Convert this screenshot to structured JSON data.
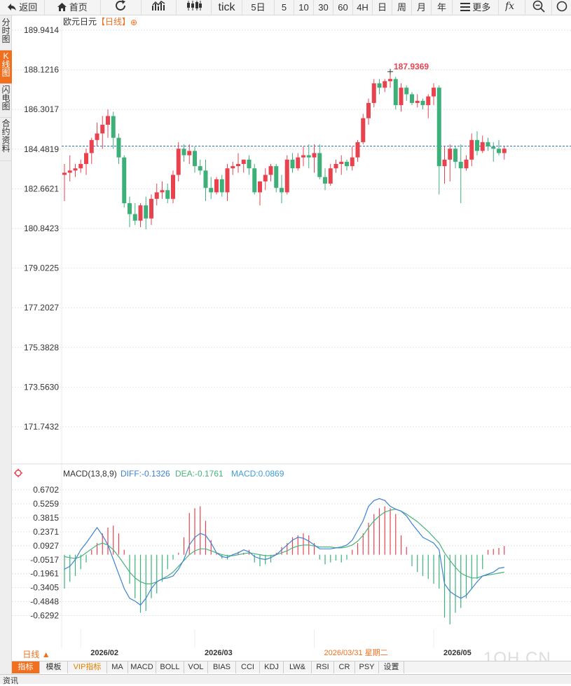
{
  "toolbar": {
    "back_label": "返回",
    "home_label": "首页",
    "tick_label": "tick",
    "periods": [
      "5日",
      "5",
      "10",
      "30",
      "60",
      "4H",
      "日",
      "周",
      "月",
      "年"
    ],
    "more_label": "更多"
  },
  "sidetabs": [
    "分时图",
    "K线图",
    "闪电图",
    "合约资料"
  ],
  "header": {
    "symbol": "欧元日元",
    "period_tag": "【日线】",
    "add_icon": "⊕"
  },
  "macd_header": {
    "title": "MACD(13,8,9)",
    "diff": "DIFF:-0.1326",
    "dea": "DEA:-0.1761",
    "macd": "MACD:0.0869"
  },
  "colors": {
    "up": "#e8424f",
    "down": "#3db07a",
    "diff": "#3e82d0",
    "dea": "#48b47a",
    "grid": "#e6e6e6",
    "ref": "#2a74c8",
    "accent": "#f07020"
  },
  "chart_data": [
    {
      "type": "candlestick",
      "title": "欧元日元",
      "y_ticks": [
        "189.9414",
        "188.1216",
        "186.3017",
        "184.4819",
        "182.6621",
        "180.8423",
        "179.0225",
        "177.2027",
        "175.3828",
        "173.5630",
        "171.7432"
      ],
      "ylim": [
        171.7432,
        189.9414
      ],
      "max_label": "187.9369",
      "reference_price": 184.62,
      "ohlc": [
        [
          183.3,
          183.8,
          182.1,
          183.4
        ],
        [
          183.4,
          184.2,
          183.0,
          183.5
        ],
        [
          183.5,
          183.8,
          183.2,
          183.6
        ],
        [
          183.6,
          184.0,
          183.4,
          183.8
        ],
        [
          183.8,
          184.5,
          183.3,
          184.3
        ],
        [
          184.3,
          185.0,
          183.8,
          184.9
        ],
        [
          184.9,
          185.7,
          184.6,
          185.2
        ],
        [
          185.2,
          186.0,
          184.5,
          185.6
        ],
        [
          185.6,
          186.3,
          185.0,
          186.0
        ],
        [
          186.0,
          186.2,
          184.5,
          185.0
        ],
        [
          185.0,
          185.2,
          183.8,
          184.1
        ],
        [
          184.1,
          184.2,
          181.8,
          182.0
        ],
        [
          182.0,
          182.3,
          180.9,
          181.5
        ],
        [
          181.5,
          182.0,
          181.0,
          181.2
        ],
        [
          181.2,
          182.0,
          180.9,
          181.9
        ],
        [
          181.9,
          182.3,
          180.8,
          181.3
        ],
        [
          181.3,
          182.4,
          181.0,
          182.2
        ],
        [
          182.2,
          182.9,
          181.9,
          182.5
        ],
        [
          182.5,
          183.0,
          182.2,
          182.6
        ],
        [
          182.6,
          182.9,
          182.0,
          182.2
        ],
        [
          182.2,
          183.5,
          182.0,
          183.3
        ],
        [
          183.3,
          184.8,
          183.0,
          184.5
        ],
        [
          184.5,
          184.7,
          183.9,
          184.2
        ],
        [
          184.2,
          184.7,
          183.8,
          184.4
        ],
        [
          184.4,
          184.6,
          183.4,
          183.7
        ],
        [
          183.7,
          184.0,
          183.3,
          183.5
        ],
        [
          183.5,
          184.0,
          182.1,
          182.7
        ],
        [
          182.7,
          183.2,
          182.2,
          182.5
        ],
        [
          182.5,
          183.2,
          182.4,
          183.1
        ],
        [
          183.1,
          183.3,
          182.3,
          182.5
        ],
        [
          182.5,
          183.8,
          182.1,
          183.6
        ],
        [
          183.6,
          183.9,
          183.3,
          183.7
        ],
        [
          183.7,
          184.3,
          183.4,
          183.8
        ],
        [
          183.8,
          184.0,
          183.4,
          184.0
        ],
        [
          184.0,
          184.2,
          183.3,
          183.6
        ],
        [
          183.6,
          183.8,
          182.4,
          182.5
        ],
        [
          182.5,
          183.0,
          181.9,
          183.0
        ],
        [
          183.0,
          183.6,
          182.6,
          183.3
        ],
        [
          183.3,
          183.8,
          183.0,
          183.7
        ],
        [
          183.7,
          183.8,
          182.5,
          182.7
        ],
        [
          182.7,
          183.3,
          182.0,
          182.5
        ],
        [
          182.5,
          184.2,
          182.4,
          184.0
        ],
        [
          184.0,
          184.3,
          183.4,
          183.6
        ],
        [
          183.6,
          184.3,
          183.5,
          184.1
        ],
        [
          184.1,
          184.6,
          183.7,
          184.2
        ],
        [
          184.2,
          184.7,
          183.6,
          184.1
        ],
        [
          184.1,
          184.7,
          183.4,
          184.3
        ],
        [
          184.3,
          184.7,
          183.1,
          183.2
        ],
        [
          183.2,
          183.6,
          182.6,
          182.9
        ],
        [
          182.9,
          183.8,
          182.8,
          183.6
        ],
        [
          183.6,
          184.0,
          183.4,
          183.8
        ],
        [
          183.8,
          184.2,
          183.3,
          183.9
        ],
        [
          183.9,
          184.0,
          183.5,
          183.7
        ],
        [
          183.7,
          184.6,
          183.5,
          184.1
        ],
        [
          184.1,
          184.9,
          183.9,
          184.8
        ],
        [
          184.8,
          186.1,
          184.7,
          185.9
        ],
        [
          185.9,
          186.8,
          185.6,
          186.6
        ],
        [
          186.6,
          187.7,
          186.4,
          187.5
        ],
        [
          187.5,
          187.7,
          187.0,
          187.3
        ],
        [
          187.3,
          187.7,
          187.1,
          187.6
        ],
        [
          187.6,
          187.94,
          187.3,
          187.7
        ],
        [
          187.7,
          187.8,
          186.3,
          186.5
        ],
        [
          186.5,
          187.5,
          186.2,
          187.3
        ],
        [
          187.3,
          187.4,
          186.7,
          187.0
        ],
        [
          187.0,
          187.1,
          186.5,
          186.6
        ],
        [
          186.6,
          187.0,
          186.4,
          186.7
        ],
        [
          186.7,
          186.8,
          186.3,
          186.5
        ],
        [
          186.5,
          187.0,
          185.9,
          186.9
        ],
        [
          186.9,
          187.5,
          186.5,
          187.3
        ],
        [
          187.3,
          187.4,
          182.4,
          183.7
        ],
        [
          183.7,
          184.6,
          182.9,
          184.0
        ],
        [
          184.0,
          184.7,
          183.0,
          184.5
        ],
        [
          184.5,
          184.6,
          183.6,
          183.9
        ],
        [
          183.9,
          184.7,
          182.0,
          183.6
        ],
        [
          183.6,
          184.2,
          183.5,
          184.0
        ],
        [
          184.0,
          185.2,
          183.7,
          184.9
        ],
        [
          184.9,
          185.3,
          184.2,
          184.4
        ],
        [
          184.4,
          185.1,
          184.3,
          184.8
        ],
        [
          184.8,
          185.0,
          184.4,
          184.6
        ],
        [
          184.6,
          184.8,
          183.9,
          184.5
        ],
        [
          184.5,
          184.9,
          184.2,
          184.3
        ],
        [
          184.3,
          184.6,
          184.0,
          184.5
        ]
      ]
    },
    {
      "type": "macd",
      "title": "MACD(13,8,9)",
      "y_ticks": [
        "0.6702",
        "0.5259",
        "0.3815",
        "0.2371",
        "0.0927",
        "-0.0517",
        "-0.1961",
        "-0.3405",
        "-0.4848",
        "-0.6292"
      ],
      "ylim": [
        -0.77,
        0.75
      ],
      "x_labels": [
        "2026/02",
        "2026/03",
        "2026/03/31 星期二",
        "2026/05"
      ],
      "histogram": [
        -0.35,
        -0.28,
        -0.22,
        -0.15,
        -0.08,
        0.05,
        0.12,
        0.22,
        0.28,
        0.3,
        0.22,
        0.05,
        -0.3,
        -0.45,
        -0.6,
        -0.58,
        -0.45,
        -0.4,
        -0.28,
        -0.15,
        -0.05,
        0.02,
        0.18,
        0.43,
        0.48,
        0.5,
        0.35,
        0.15,
        0.02,
        -0.04,
        -0.05,
        0.0,
        0.03,
        0.02,
        0.05,
        -0.08,
        -0.12,
        -0.1,
        -0.08,
        0.02,
        0.08,
        0.12,
        0.18,
        0.2,
        0.22,
        0.2,
        0.12,
        -0.05,
        -0.1,
        -0.08,
        -0.06,
        -0.08,
        -0.05,
        0.05,
        0.12,
        0.22,
        0.33,
        0.42,
        0.48,
        0.5,
        0.48,
        0.42,
        0.2,
        0.08,
        -0.12,
        -0.18,
        -0.22,
        -0.25,
        -0.3,
        -0.35,
        -0.65,
        -0.72,
        -0.6,
        -0.55,
        -0.45,
        -0.35,
        -0.25,
        -0.15,
        0.05,
        0.06,
        0.07,
        0.09
      ],
      "diff": [
        -0.15,
        -0.12,
        -0.05,
        0.05,
        0.12,
        0.2,
        0.28,
        0.2,
        0.1,
        -0.05,
        -0.2,
        -0.35,
        -0.45,
        -0.48,
        -0.52,
        -0.45,
        -0.35,
        -0.28,
        -0.25,
        -0.24,
        -0.22,
        -0.15,
        -0.05,
        0.1,
        0.18,
        0.22,
        0.2,
        0.12,
        0.02,
        -0.02,
        -0.03,
        0.0,
        0.02,
        0.05,
        0.03,
        -0.02,
        -0.04,
        -0.05,
        -0.03,
        0.0,
        0.05,
        0.1,
        0.15,
        0.18,
        0.17,
        0.14,
        0.1,
        0.06,
        0.06,
        0.06,
        0.07,
        0.08,
        0.1,
        0.15,
        0.25,
        0.35,
        0.5,
        0.56,
        0.58,
        0.56,
        0.5,
        0.47,
        0.45,
        0.4,
        0.32,
        0.25,
        0.18,
        0.15,
        0.12,
        0.05,
        -0.3,
        -0.38,
        -0.42,
        -0.45,
        -0.42,
        -0.35,
        -0.28,
        -0.22,
        -0.2,
        -0.18,
        -0.14,
        -0.13
      ],
      "dea": [
        -0.02,
        -0.03,
        -0.04,
        -0.02,
        0.02,
        0.06,
        0.1,
        0.12,
        0.1,
        0.05,
        -0.02,
        -0.1,
        -0.18,
        -0.24,
        -0.28,
        -0.3,
        -0.3,
        -0.28,
        -0.25,
        -0.22,
        -0.18,
        -0.12,
        -0.06,
        0.0,
        0.04,
        0.06,
        0.06,
        0.04,
        0.02,
        0.0,
        -0.01,
        -0.01,
        0.0,
        0.01,
        0.02,
        0.01,
        0.0,
        -0.01,
        -0.01,
        0.0,
        0.02,
        0.04,
        0.07,
        0.09,
        0.1,
        0.1,
        0.09,
        0.08,
        0.08,
        0.08,
        0.07,
        0.07,
        0.08,
        0.1,
        0.14,
        0.2,
        0.28,
        0.35,
        0.4,
        0.44,
        0.46,
        0.47,
        0.45,
        0.42,
        0.38,
        0.34,
        0.29,
        0.24,
        0.18,
        0.12,
        0.02,
        -0.06,
        -0.13,
        -0.19,
        -0.22,
        -0.24,
        -0.24,
        -0.22,
        -0.21,
        -0.2,
        -0.19,
        -0.18
      ]
    }
  ],
  "bottombar": [
    "指标",
    "模板",
    "VIP指标",
    "MA",
    "MACD",
    "BOLL",
    "VOL",
    "BIAS",
    "CCI",
    "KDJ",
    "LW&",
    "RSI",
    "CR",
    "PSY",
    "设置"
  ],
  "footer": {
    "period_label": "日线 ▲",
    "watermark": "1QH.CN",
    "under_label": "资讯"
  }
}
